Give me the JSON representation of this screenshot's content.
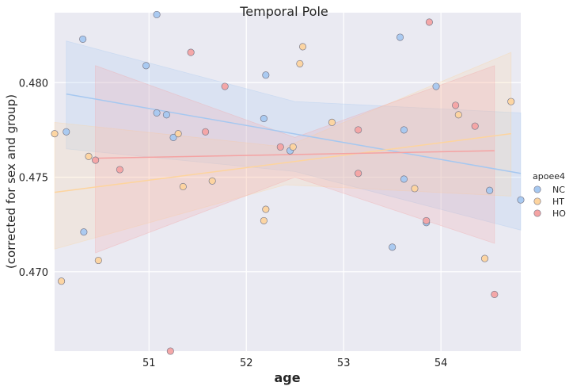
{
  "chart_data": {
    "type": "scatter",
    "title": "Temporal Pole",
    "xlabel": "age",
    "ylabel": "(corrected for sex and group)",
    "xlim": [
      50.03,
      54.82
    ],
    "ylim": [
      0.4658,
      0.4837
    ],
    "xticks": [
      51,
      52,
      53,
      54
    ],
    "yticks": [
      0.47,
      0.475,
      0.48
    ],
    "ytick_labels": [
      "0.470",
      "0.475",
      "0.480"
    ],
    "grid": true,
    "legend": {
      "title": "apoee4",
      "placement": "right"
    },
    "colors": {
      "NC": "#a6c8f0",
      "HT": "#fdd49e",
      "HO": "#f4a3a3",
      "background": "#eaeaf2",
      "grid": "#ffffff"
    },
    "series": [
      {
        "name": "NC",
        "color": "#a6c8f0",
        "regression": {
          "x0": 50.15,
          "y0": 0.4794,
          "x1": 54.82,
          "y1": 0.4752
        },
        "band": {
          "x": [
            50.15,
            52.5,
            54.82
          ],
          "upper": [
            0.4822,
            0.479,
            0.4784
          ],
          "lower": [
            0.4765,
            0.4753,
            0.4722
          ]
        },
        "points": [
          [
            50.15,
            0.4774
          ],
          [
            50.32,
            0.4823
          ],
          [
            50.33,
            0.4721
          ],
          [
            50.97,
            0.4809
          ],
          [
            51.08,
            0.4836
          ],
          [
            51.08,
            0.4784
          ],
          [
            51.18,
            0.4783
          ],
          [
            51.25,
            0.4771
          ],
          [
            52.18,
            0.4781
          ],
          [
            52.2,
            0.4804
          ],
          [
            52.45,
            0.4764
          ],
          [
            53.5,
            0.4713
          ],
          [
            53.58,
            0.4824
          ],
          [
            53.62,
            0.4775
          ],
          [
            53.62,
            0.4749
          ],
          [
            53.85,
            0.4726
          ],
          [
            53.95,
            0.4798
          ],
          [
            54.5,
            0.4743
          ],
          [
            54.82,
            0.4738
          ]
        ]
      },
      {
        "name": "HT",
        "color": "#fdd49e",
        "regression": {
          "x0": 50.03,
          "y0": 0.4742,
          "x1": 54.72,
          "y1": 0.4773
        },
        "band": {
          "x": [
            50.03,
            52.4,
            54.72
          ],
          "upper": [
            0.4779,
            0.4766,
            0.4816
          ],
          "lower": [
            0.4712,
            0.4746,
            0.474
          ]
        },
        "points": [
          [
            50.03,
            0.4773
          ],
          [
            50.1,
            0.4695
          ],
          [
            50.38,
            0.4761
          ],
          [
            50.48,
            0.4706
          ],
          [
            51.3,
            0.4773
          ],
          [
            51.35,
            0.4745
          ],
          [
            51.65,
            0.4748
          ],
          [
            52.18,
            0.4727
          ],
          [
            52.2,
            0.4733
          ],
          [
            52.48,
            0.4766
          ],
          [
            52.55,
            0.481
          ],
          [
            52.58,
            0.4819
          ],
          [
            52.88,
            0.4779
          ],
          [
            53.73,
            0.4744
          ],
          [
            54.18,
            0.4783
          ],
          [
            54.45,
            0.4707
          ],
          [
            54.72,
            0.479
          ]
        ]
      },
      {
        "name": "HO",
        "color": "#f4a3a3",
        "regression": {
          "x0": 50.45,
          "y0": 0.476,
          "x1": 54.55,
          "y1": 0.4764
        },
        "band": {
          "x": [
            50.45,
            52.5,
            54.55
          ],
          "upper": [
            0.4809,
            0.4771,
            0.4809
          ],
          "lower": [
            0.471,
            0.475,
            0.4715
          ]
        },
        "points": [
          [
            50.45,
            0.4759
          ],
          [
            50.7,
            0.4754
          ],
          [
            51.22,
            0.4658
          ],
          [
            51.43,
            0.4816
          ],
          [
            51.58,
            0.4774
          ],
          [
            51.78,
            0.4798
          ],
          [
            52.35,
            0.4766
          ],
          [
            53.15,
            0.4775
          ],
          [
            53.15,
            0.4752
          ],
          [
            53.85,
            0.4727
          ],
          [
            53.88,
            0.4832
          ],
          [
            54.15,
            0.4788
          ],
          [
            54.35,
            0.4777
          ],
          [
            54.55,
            0.4688
          ]
        ]
      }
    ]
  }
}
